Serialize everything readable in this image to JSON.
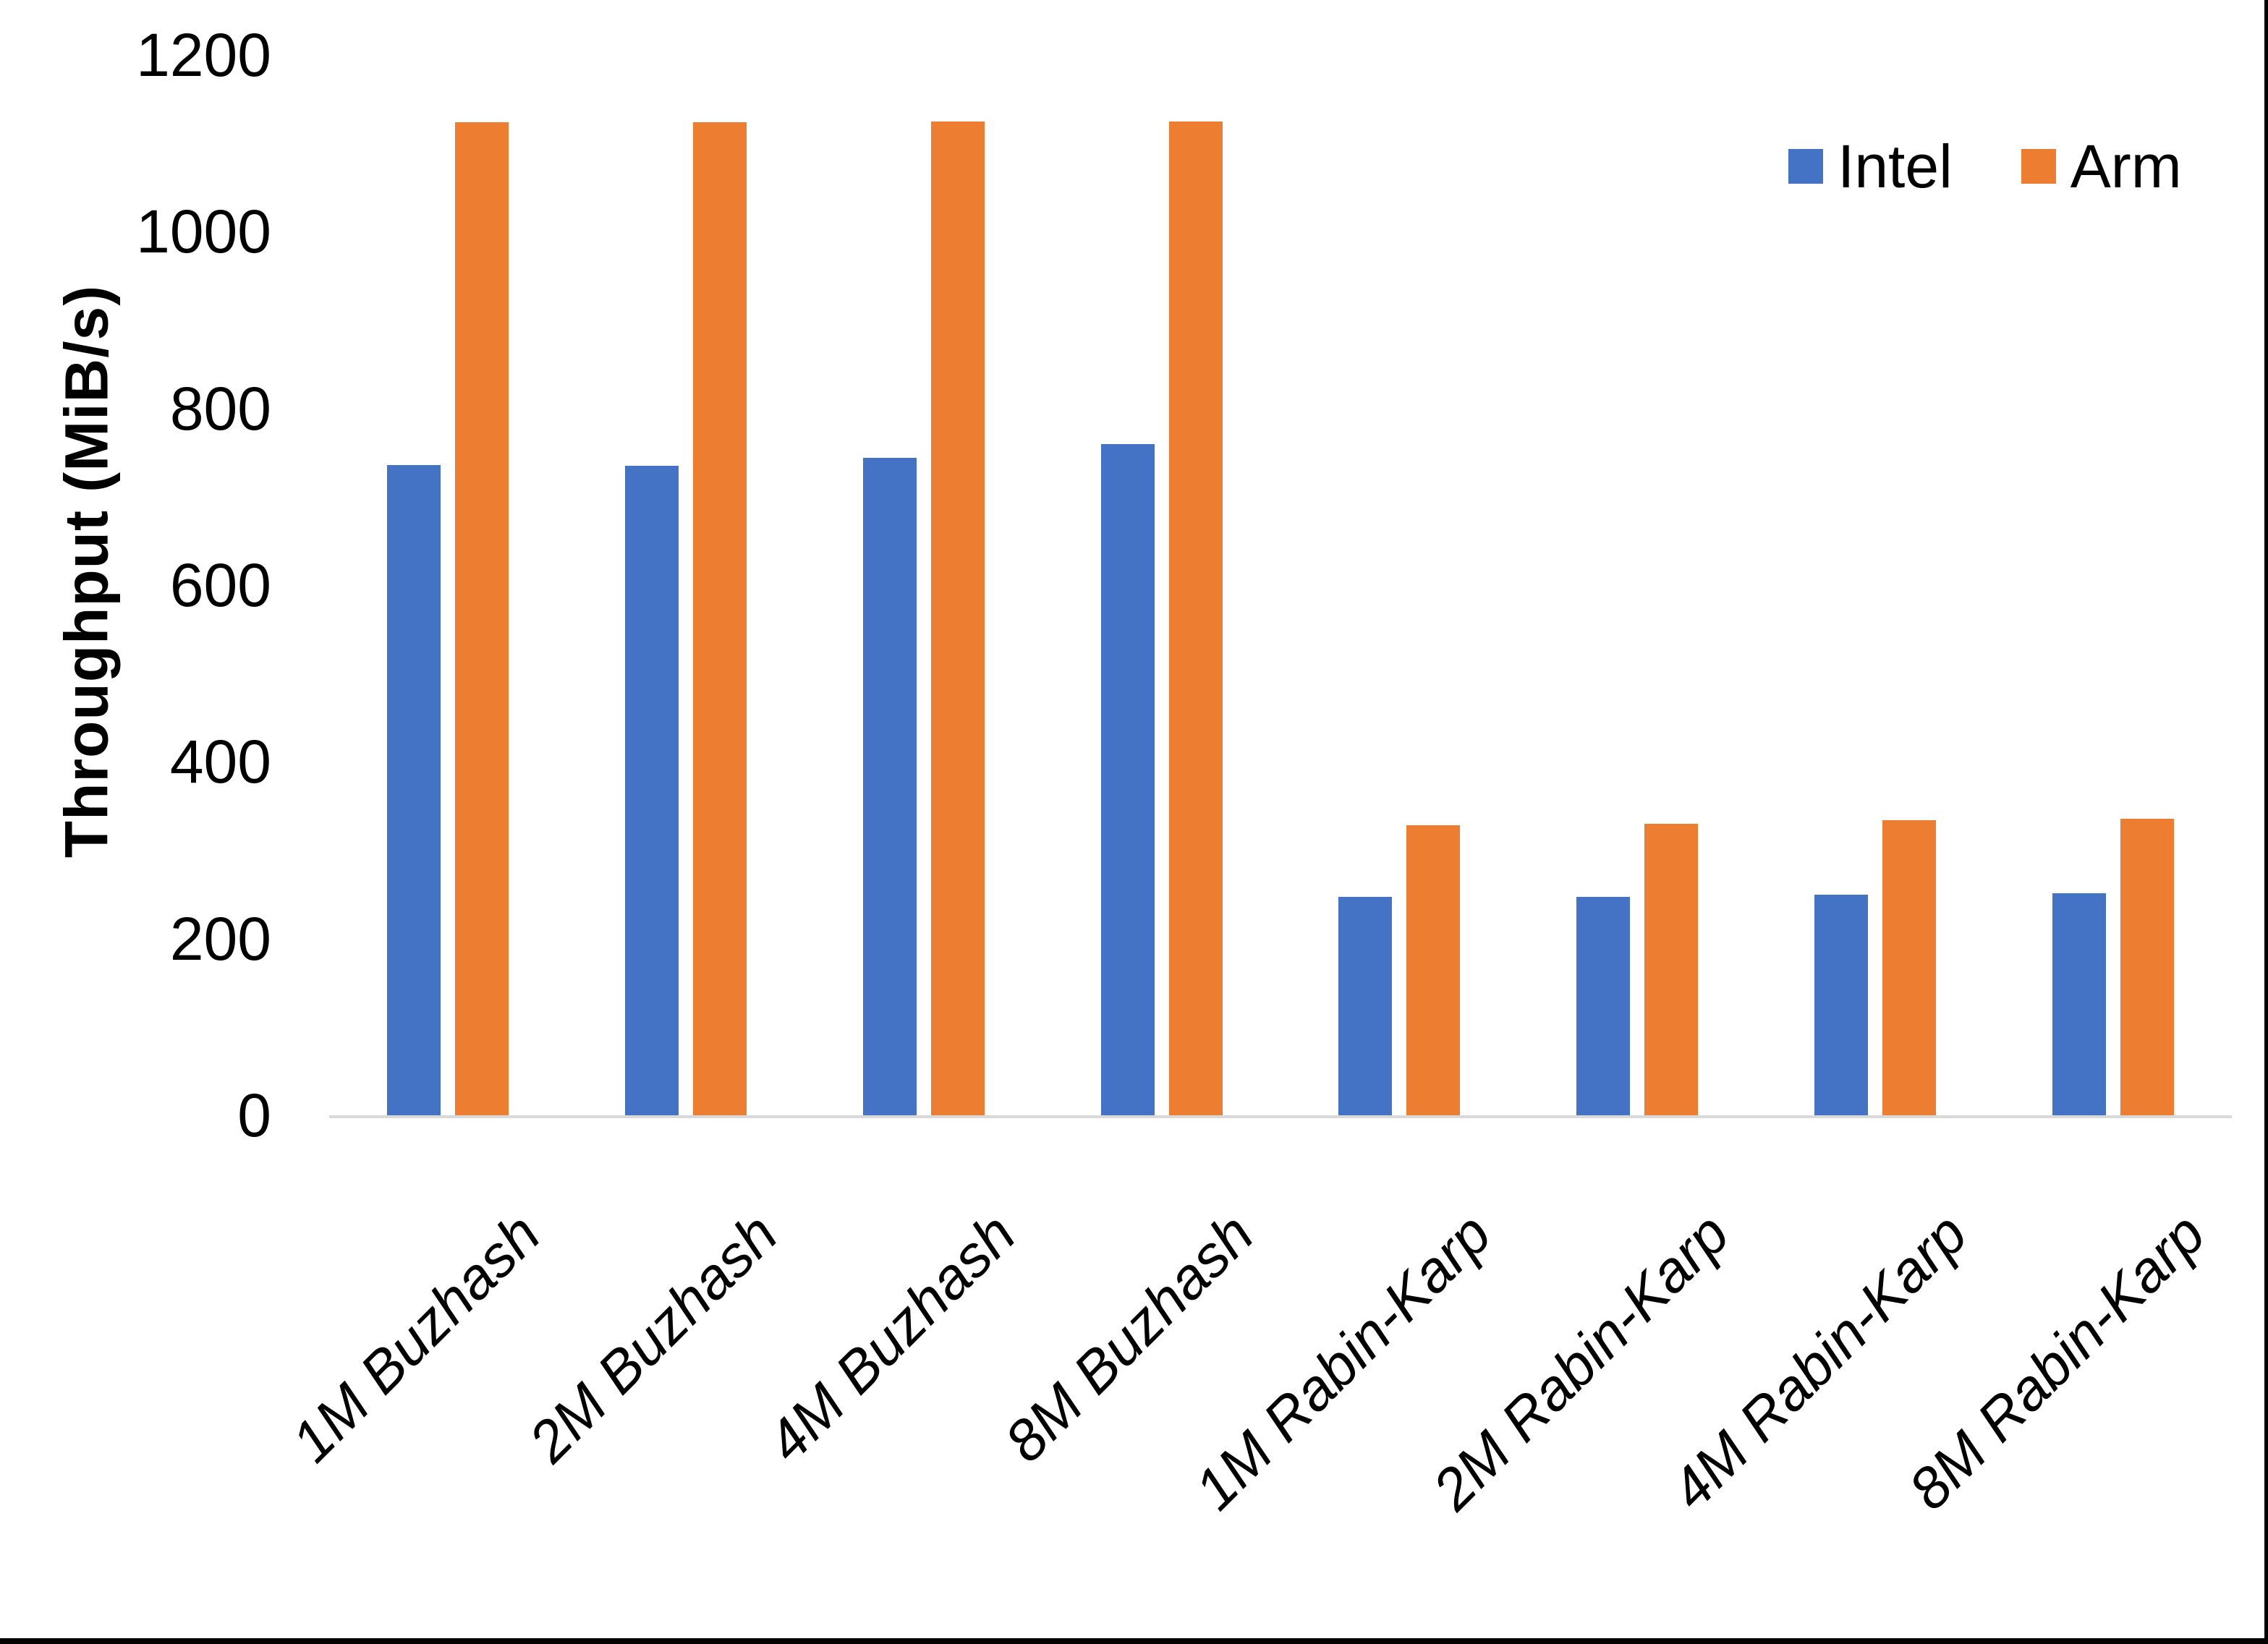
{
  "chart_data": {
    "type": "bar",
    "title": "",
    "xlabel": "",
    "ylabel": "Throughput (MiB/s)",
    "ylim": [
      0,
      1200
    ],
    "yticks": [
      0,
      200,
      400,
      600,
      800,
      1000,
      1200
    ],
    "grid": false,
    "legend_position": "top-right",
    "axis_line_color": "#D9D9D9",
    "categories": [
      "1M Buzhash",
      "2M Buzhash",
      "4M Buzhash",
      "8M Buzhash",
      "1M Rabin-Karp",
      "2M Rabin-Karp",
      "4M Rabin-Karp",
      "8M Rabin-Karp"
    ],
    "series": [
      {
        "name": "Intel",
        "color": "#4472C4",
        "values": [
          736,
          735,
          744,
          760,
          247,
          247,
          250,
          251
        ]
      },
      {
        "name": "Arm",
        "color": "#ED7D31",
        "values": [
          1124,
          1124,
          1125,
          1125,
          328,
          330,
          334,
          336
        ]
      }
    ]
  }
}
